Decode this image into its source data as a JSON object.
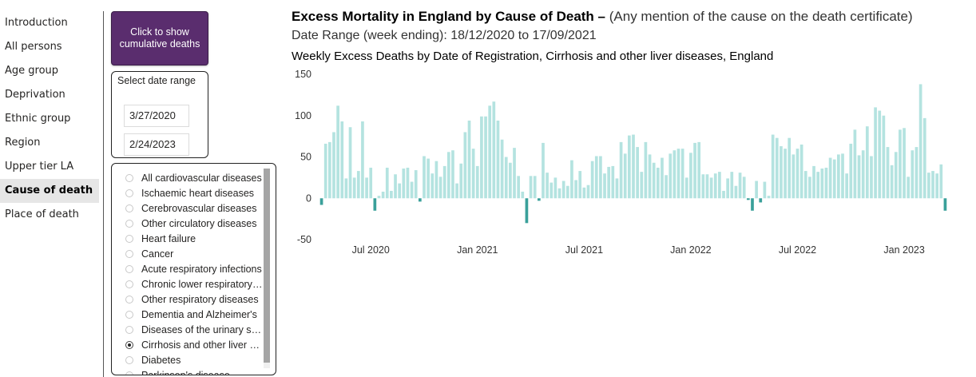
{
  "nav": {
    "items": [
      {
        "label": "Introduction",
        "active": false
      },
      {
        "label": "All persons",
        "active": false
      },
      {
        "label": "Age group",
        "active": false
      },
      {
        "label": "Deprivation",
        "active": false
      },
      {
        "label": "Ethnic group",
        "active": false
      },
      {
        "label": "Region",
        "active": false
      },
      {
        "label": "Upper tier LA",
        "active": false
      },
      {
        "label": "Cause of death",
        "active": true
      },
      {
        "label": "Place of death",
        "active": false
      }
    ]
  },
  "cumulative_button": {
    "label": "Click to show cumulative deaths"
  },
  "date_filter": {
    "title": "Select date range",
    "start_value": "3/27/2020",
    "end_value": "2/24/2023"
  },
  "causes": {
    "items": [
      {
        "label": "All cardiovascular diseases",
        "checked": false
      },
      {
        "label": "Ischaemic heart diseases",
        "checked": false
      },
      {
        "label": "Cerebrovascular diseases",
        "checked": false
      },
      {
        "label": "Other circulatory diseases",
        "checked": false
      },
      {
        "label": "Heart failure",
        "checked": false
      },
      {
        "label": "Cancer",
        "checked": false
      },
      {
        "label": "Acute respiratory infections",
        "checked": false
      },
      {
        "label": "Chronic lower respiratory diseases",
        "checked": false
      },
      {
        "label": "Other respiratory diseases",
        "checked": false
      },
      {
        "label": "Dementia and Alzheimer's",
        "checked": false
      },
      {
        "label": "Diseases of the urinary system",
        "checked": false
      },
      {
        "label": "Cirrhosis and other liver diseases",
        "checked": true
      },
      {
        "label": "Diabetes",
        "checked": false
      },
      {
        "label": "Parkinson's disease",
        "checked": false
      }
    ]
  },
  "header": {
    "title": "Excess Mortality in England by Cause of Death –",
    "subtitle": "(Any mention of the cause on the death certificate)",
    "date_range": "Date Range (week ending): 18/12/2020 to 17/09/2021"
  },
  "chart_data": {
    "type": "bar",
    "title": "Weekly Excess Deaths by Date of Registration, Cirrhosis and other liver diseases, England",
    "xlabel": "",
    "ylabel": "",
    "ylim": [
      -50,
      150
    ],
    "yticks": [
      150,
      100,
      50,
      0,
      -50
    ],
    "xticks": [
      {
        "label": "Jul 2020",
        "week": 12
      },
      {
        "label": "Jan 2021",
        "week": 38
      },
      {
        "label": "Jul 2021",
        "week": 64
      },
      {
        "label": "Jan 2022",
        "week": 90
      },
      {
        "label": "Jul 2022",
        "week": 116
      },
      {
        "label": "Jan 2023",
        "week": 142
      }
    ],
    "positive_color": "#b4e3e0",
    "negative_color": "#3aa09a",
    "values": [
      -8,
      66,
      68,
      80,
      112,
      93,
      24,
      86,
      25,
      33,
      93,
      25,
      37,
      -15,
      3,
      8,
      37,
      9,
      29,
      18,
      36,
      37,
      20,
      34,
      -4,
      51,
      48,
      30,
      45,
      26,
      39,
      56,
      58,
      18,
      42,
      80,
      94,
      60,
      39,
      99,
      99,
      112,
      117,
      94,
      71,
      50,
      43,
      61,
      27,
      8,
      -30,
      27,
      27,
      -3,
      67,
      31,
      19,
      25,
      12,
      21,
      15,
      46,
      22,
      33,
      13,
      16,
      45,
      51,
      51,
      30,
      38,
      39,
      24,
      68,
      54,
      76,
      77,
      62,
      32,
      68,
      53,
      43,
      37,
      49,
      28,
      54,
      58,
      60,
      60,
      25,
      55,
      67,
      68,
      29,
      29,
      25,
      30,
      32,
      9,
      24,
      32,
      15,
      31,
      26,
      -2,
      -15,
      21,
      -5,
      20,
      3,
      77,
      73,
      63,
      60,
      73,
      53,
      60,
      65,
      33,
      26,
      39,
      32,
      36,
      37,
      49,
      47,
      53,
      54,
      30,
      66,
      83,
      52,
      58,
      87,
      51,
      110,
      106,
      100,
      62,
      40,
      56,
      83,
      85,
      26,
      58,
      62,
      138,
      97,
      31,
      33,
      30,
      41,
      -15
    ]
  }
}
